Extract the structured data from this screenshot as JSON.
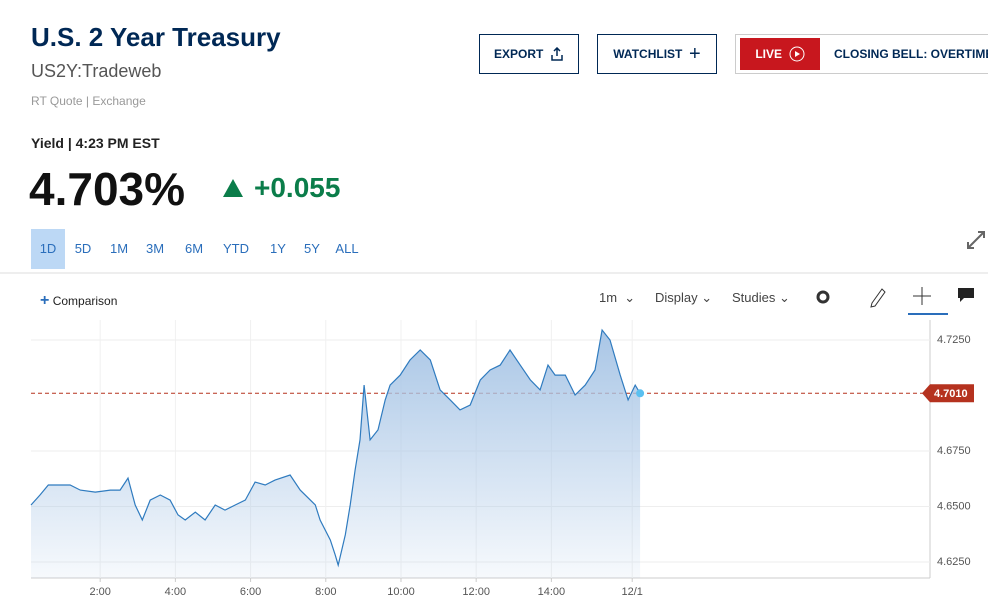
{
  "header": {
    "title": "U.S. 2 Year Treasury",
    "symbol": "US2Y:Tradeweb",
    "quote_source": "RT Quote | Exchange"
  },
  "buttons": {
    "export": "EXPORT",
    "watchlist": "WATCHLIST",
    "live": "LIVE",
    "live_show": "CLOSING BELL: OVERTIME"
  },
  "quote": {
    "label": "Yield | 4:23 PM EST",
    "price": "4.703%",
    "change": "+0.055"
  },
  "ranges": [
    "1D",
    "5D",
    "1M",
    "3M",
    "6M",
    "YTD",
    "1Y",
    "5Y",
    "ALL"
  ],
  "toolbar": {
    "comparison": "Comparison",
    "interval": "1m",
    "display": "Display",
    "studies": "Studies"
  },
  "chart_data": {
    "type": "line",
    "color": "#2f7bbf",
    "x": [
      0.16,
      0.4,
      0.62,
      1.2,
      1.47,
      1.87,
      2.27,
      2.53,
      2.74,
      2.93,
      3.12,
      3.33,
      3.6,
      3.86,
      4.07,
      4.26,
      4.53,
      4.79,
      5.06,
      5.32,
      5.59,
      5.86,
      6.12,
      6.39,
      6.65,
      7.05,
      7.32,
      7.72,
      7.85,
      8.12,
      8.25,
      8.33,
      8.52,
      8.65,
      8.78,
      8.91,
      9.02,
      9.18,
      9.39,
      9.58,
      9.71,
      9.98,
      10.24,
      10.51,
      10.78,
      11.04,
      11.31,
      11.57,
      11.84,
      12.11,
      12.37,
      12.64,
      12.9,
      13.17,
      13.44,
      13.7,
      13.91,
      14.1,
      14.37,
      14.63,
      14.9,
      15.16,
      15.35,
      15.56,
      15.83,
      16.04,
      16.23,
      16.36
    ],
    "values": [
      4.6507,
      4.6552,
      4.6597,
      4.6597,
      4.6574,
      4.6565,
      4.6574,
      4.6574,
      4.6628,
      4.6507,
      4.6439,
      4.6529,
      4.6552,
      4.6529,
      4.6462,
      4.6439,
      4.6475,
      4.6439,
      4.6507,
      4.6484,
      4.6507,
      4.6529,
      4.661,
      4.6597,
      4.6619,
      4.6642,
      4.6574,
      4.6507,
      4.6439,
      4.6349,
      4.6282,
      4.6236,
      4.6372,
      4.6507,
      4.6664,
      4.68,
      4.7047,
      4.68,
      4.6845,
      4.698,
      4.7047,
      4.7092,
      4.716,
      4.7205,
      4.716,
      4.7025,
      4.698,
      4.6935,
      4.6957,
      4.707,
      4.7115,
      4.7137,
      4.7205,
      4.7137,
      4.707,
      4.7025,
      4.7137,
      4.7092,
      4.7092,
      4.7002,
      4.7047,
      4.7115,
      4.7295,
      4.725,
      4.7092,
      4.698,
      4.7047,
      4.701
    ],
    "xlim": [
      0.16,
      24.07
    ],
    "xticks": [
      {
        "value": 2,
        "label": "2:00"
      },
      {
        "value": 4,
        "label": "4:00"
      },
      {
        "value": 6,
        "label": "6:00"
      },
      {
        "value": 8,
        "label": "8:00"
      },
      {
        "value": 10,
        "label": "10:00"
      },
      {
        "value": 12,
        "label": "12:00"
      },
      {
        "value": 14,
        "label": "14:00"
      },
      {
        "value": 16.15,
        "label": "12/1"
      }
    ],
    "ylim": [
      4.6178,
      4.734
    ],
    "yticks": [
      {
        "value": 4.625,
        "label": "4.6250"
      },
      {
        "value": 4.65,
        "label": "4.6500"
      },
      {
        "value": 4.675,
        "label": "4.6750"
      },
      {
        "value": 4.725,
        "label": "4.7250"
      }
    ],
    "reference_line": {
      "value": 4.701,
      "label": "4.7010",
      "color": "#b5321f"
    },
    "grid": true
  }
}
